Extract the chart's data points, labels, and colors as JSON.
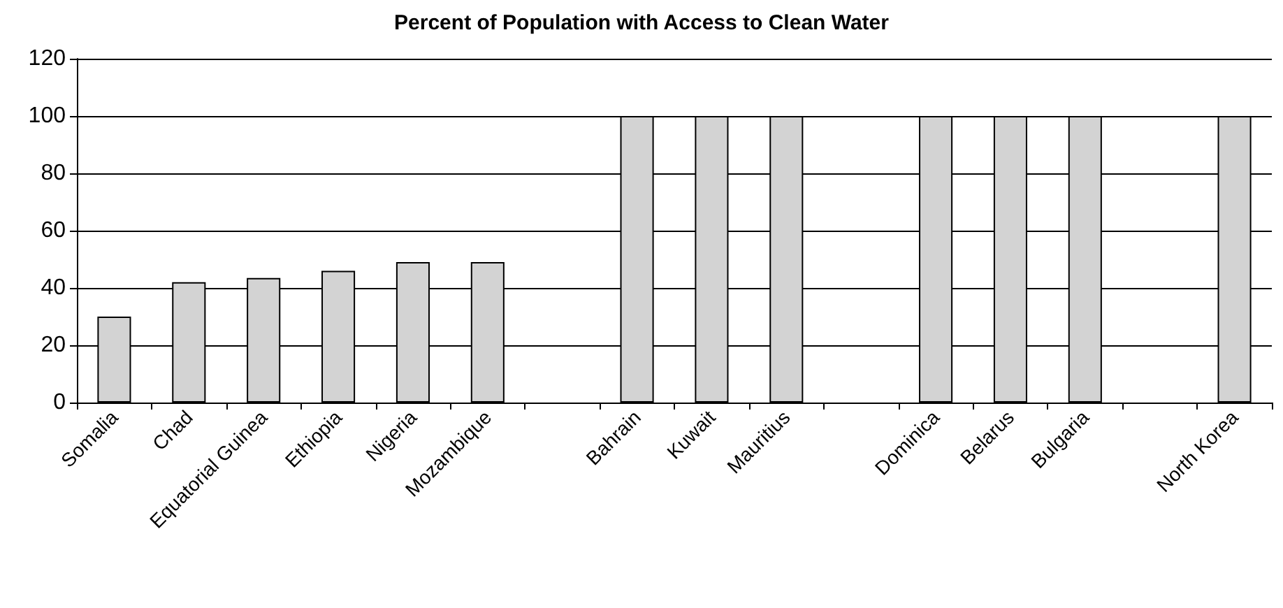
{
  "chart_data": {
    "type": "bar",
    "title": "Percent of Population with Access to Clean Water",
    "categories": [
      "Somalia",
      "Chad",
      "Equatorial Guinea",
      "Ethiopia",
      "Nigeria",
      "Mozambique",
      null,
      "Bahrain",
      "Kuwait",
      "Mauritius",
      null,
      "Dominica",
      "Belarus",
      "Bulgaria",
      null,
      "North Korea"
    ],
    "values": [
      30,
      42,
      43.5,
      46,
      49,
      49,
      null,
      100,
      100,
      100,
      null,
      100,
      100,
      100,
      null,
      100
    ],
    "color": "#d3d3d3",
    "ylim": [
      0,
      120
    ],
    "yticks": [
      0,
      20,
      40,
      60,
      80,
      100,
      120
    ],
    "grid": "y"
  }
}
